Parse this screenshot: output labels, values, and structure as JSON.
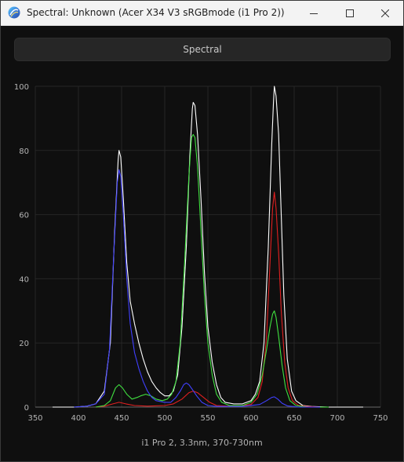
{
  "window": {
    "title": "Spectral: Unknown (Acer X34 V3 sRGBmode (i1 Pro 2))",
    "icon": "app-logo-icon"
  },
  "controls": {
    "minimize_icon": "minimize-icon",
    "maximize_icon": "maximize-icon",
    "close_icon": "close-icon"
  },
  "tab": {
    "label": "Spectral"
  },
  "caption": "i1 Pro 2, 3.3nm, 370-730nm",
  "colors": {
    "white": "#ffffff",
    "red": "#e02020",
    "green": "#40e040",
    "blue": "#4040ff",
    "grid": "#262626",
    "axis": "#6a6a6a"
  },
  "chart_data": {
    "type": "line",
    "xlim": [
      350,
      750
    ],
    "ylim": [
      0,
      100
    ],
    "x_ticks": [
      350,
      400,
      450,
      500,
      550,
      600,
      650,
      700,
      750
    ],
    "y_ticks": [
      0,
      20,
      40,
      60,
      80,
      100
    ],
    "grid": true,
    "series": [
      {
        "color": "#ffffff",
        "points": [
          [
            370,
            0
          ],
          [
            380,
            0
          ],
          [
            395,
            0
          ],
          [
            410,
            0.3
          ],
          [
            420,
            1
          ],
          [
            430,
            5
          ],
          [
            437,
            20
          ],
          [
            442,
            55
          ],
          [
            446,
            77
          ],
          [
            447,
            80
          ],
          [
            449,
            78
          ],
          [
            452,
            65
          ],
          [
            456,
            45
          ],
          [
            460,
            33
          ],
          [
            465,
            26
          ],
          [
            470,
            20
          ],
          [
            475,
            15
          ],
          [
            480,
            11
          ],
          [
            485,
            8
          ],
          [
            490,
            6
          ],
          [
            495,
            4.5
          ],
          [
            500,
            3.5
          ],
          [
            505,
            3.5
          ],
          [
            510,
            5
          ],
          [
            515,
            10
          ],
          [
            520,
            25
          ],
          [
            525,
            50
          ],
          [
            529,
            78
          ],
          [
            532,
            93
          ],
          [
            533,
            95
          ],
          [
            535,
            94
          ],
          [
            538,
            85
          ],
          [
            542,
            65
          ],
          [
            546,
            42
          ],
          [
            550,
            25
          ],
          [
            555,
            14
          ],
          [
            560,
            7
          ],
          [
            565,
            3
          ],
          [
            570,
            1.5
          ],
          [
            580,
            1
          ],
          [
            590,
            1
          ],
          [
            600,
            2
          ],
          [
            605,
            4
          ],
          [
            610,
            8
          ],
          [
            615,
            20
          ],
          [
            620,
            50
          ],
          [
            624,
            82
          ],
          [
            626,
            95
          ],
          [
            627,
            100
          ],
          [
            629,
            97
          ],
          [
            632,
            85
          ],
          [
            635,
            60
          ],
          [
            638,
            35
          ],
          [
            642,
            15
          ],
          [
            647,
            5
          ],
          [
            652,
            2
          ],
          [
            660,
            0.5
          ],
          [
            670,
            0.2
          ],
          [
            690,
            0
          ],
          [
            710,
            0
          ],
          [
            730,
            0
          ]
        ]
      },
      {
        "color": "#e02020",
        "points": [
          [
            420,
            0
          ],
          [
            430,
            0.3
          ],
          [
            440,
            1
          ],
          [
            447,
            1.5
          ],
          [
            455,
            1
          ],
          [
            465,
            0.5
          ],
          [
            480,
            0.3
          ],
          [
            500,
            0.5
          ],
          [
            510,
            1
          ],
          [
            520,
            2.5
          ],
          [
            528,
            4.5
          ],
          [
            533,
            5
          ],
          [
            538,
            4.5
          ],
          [
            545,
            3
          ],
          [
            552,
            1.5
          ],
          [
            560,
            0.5
          ],
          [
            580,
            0.2
          ],
          [
            600,
            0.8
          ],
          [
            608,
            3
          ],
          [
            613,
            8
          ],
          [
            618,
            22
          ],
          [
            622,
            45
          ],
          [
            625,
            62
          ],
          [
            627,
            67
          ],
          [
            629,
            62
          ],
          [
            632,
            48
          ],
          [
            635,
            30
          ],
          [
            639,
            14
          ],
          [
            643,
            6
          ],
          [
            648,
            2
          ],
          [
            655,
            0.5
          ],
          [
            665,
            0.2
          ],
          [
            680,
            0
          ]
        ]
      },
      {
        "color": "#40e040",
        "points": [
          [
            420,
            0
          ],
          [
            430,
            0.5
          ],
          [
            437,
            2
          ],
          [
            443,
            6
          ],
          [
            447,
            7
          ],
          [
            451,
            6
          ],
          [
            456,
            4
          ],
          [
            462,
            2.5
          ],
          [
            468,
            3
          ],
          [
            472,
            3.5
          ],
          [
            478,
            4
          ],
          [
            484,
            3.5
          ],
          [
            490,
            2.5
          ],
          [
            497,
            2
          ],
          [
            503,
            2.5
          ],
          [
            508,
            4
          ],
          [
            513,
            8
          ],
          [
            518,
            20
          ],
          [
            523,
            45
          ],
          [
            528,
            72
          ],
          [
            531,
            84
          ],
          [
            533,
            85
          ],
          [
            535,
            84
          ],
          [
            538,
            75
          ],
          [
            542,
            55
          ],
          [
            546,
            35
          ],
          [
            550,
            20
          ],
          [
            555,
            10
          ],
          [
            560,
            4
          ],
          [
            566,
            1.5
          ],
          [
            575,
            0.5
          ],
          [
            590,
            0.5
          ],
          [
            600,
            1.5
          ],
          [
            607,
            4
          ],
          [
            613,
            10
          ],
          [
            618,
            18
          ],
          [
            622,
            25
          ],
          [
            625,
            29
          ],
          [
            627,
            30
          ],
          [
            629,
            28
          ],
          [
            632,
            22
          ],
          [
            636,
            13
          ],
          [
            640,
            6
          ],
          [
            645,
            2
          ],
          [
            652,
            0.5
          ],
          [
            665,
            0
          ],
          [
            690,
            0
          ]
        ]
      },
      {
        "color": "#4040ff",
        "points": [
          [
            395,
            0
          ],
          [
            410,
            0.3
          ],
          [
            420,
            1
          ],
          [
            430,
            4
          ],
          [
            436,
            18
          ],
          [
            441,
            48
          ],
          [
            445,
            70
          ],
          [
            447,
            74
          ],
          [
            449,
            72
          ],
          [
            452,
            60
          ],
          [
            456,
            40
          ],
          [
            460,
            26
          ],
          [
            465,
            17
          ],
          [
            470,
            12
          ],
          [
            475,
            8
          ],
          [
            480,
            5
          ],
          [
            485,
            3
          ],
          [
            490,
            2
          ],
          [
            500,
            1.5
          ],
          [
            507,
            1.5
          ],
          [
            513,
            3
          ],
          [
            518,
            5
          ],
          [
            522,
            7
          ],
          [
            525,
            7.5
          ],
          [
            528,
            7
          ],
          [
            532,
            5.5
          ],
          [
            537,
            3.5
          ],
          [
            543,
            1.5
          ],
          [
            550,
            0.5
          ],
          [
            560,
            0.2
          ],
          [
            590,
            0.2
          ],
          [
            610,
            0.8
          ],
          [
            618,
            2
          ],
          [
            624,
            3
          ],
          [
            627,
            3.2
          ],
          [
            631,
            2.5
          ],
          [
            636,
            1.2
          ],
          [
            642,
            0.4
          ],
          [
            655,
            0
          ],
          [
            680,
            0
          ]
        ]
      }
    ]
  }
}
